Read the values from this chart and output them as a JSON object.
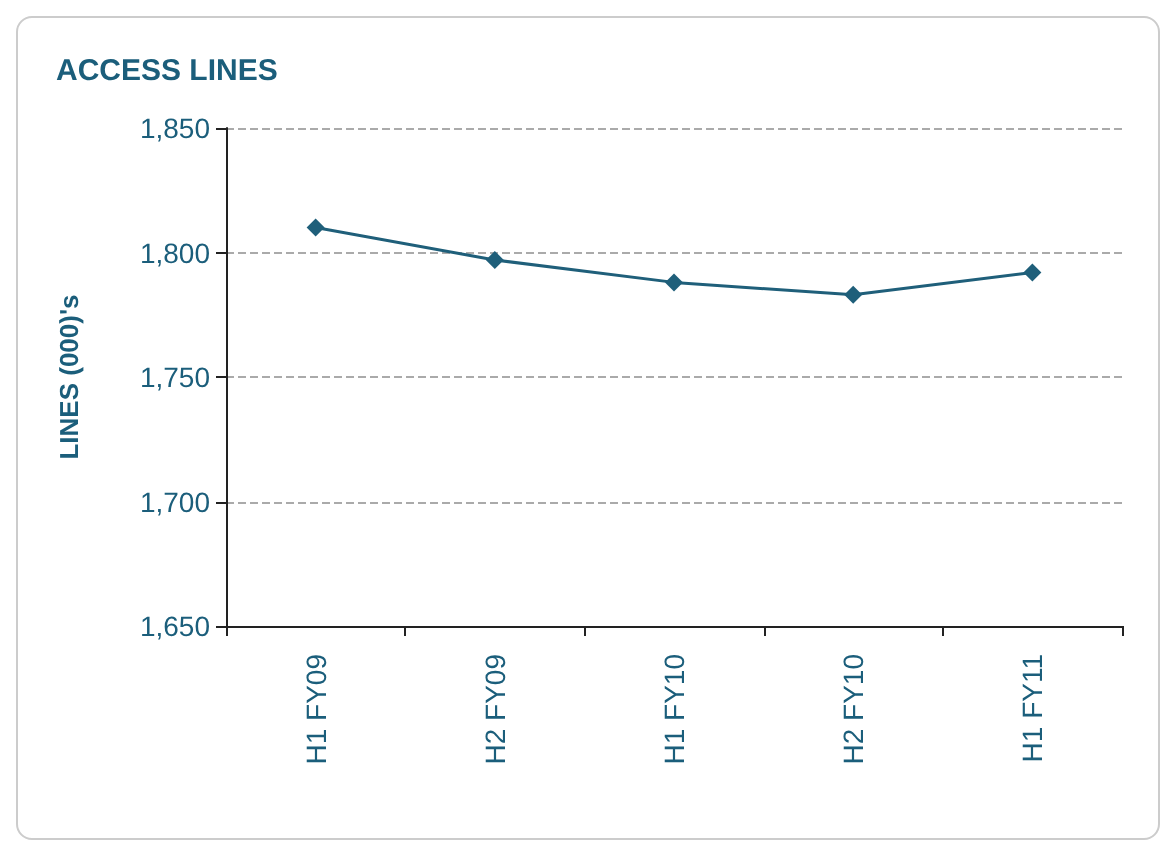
{
  "chart_data": {
    "type": "line",
    "title": "ACCESS LINES",
    "ylabel": "LINES (000)'s",
    "categories": [
      "H1 FY09",
      "H2 FY09",
      "H1 FY10",
      "H2 FY10",
      "H1 FY11"
    ],
    "series": [
      {
        "color": "#1f5f7a",
        "values": [
          1810,
          1797,
          1788,
          1783,
          1792
        ]
      }
    ],
    "ylim": [
      1650,
      1850
    ],
    "yticks": [
      {
        "value": 1650,
        "label": "1,650"
      },
      {
        "value": 1700,
        "label": "1,700"
      },
      {
        "value": 1750,
        "label": "1,750"
      },
      {
        "value": 1800,
        "label": "1,800"
      },
      {
        "value": 1850,
        "label": "1,850"
      }
    ],
    "grid": "y",
    "marker": "diamond",
    "line_style": "solid"
  }
}
